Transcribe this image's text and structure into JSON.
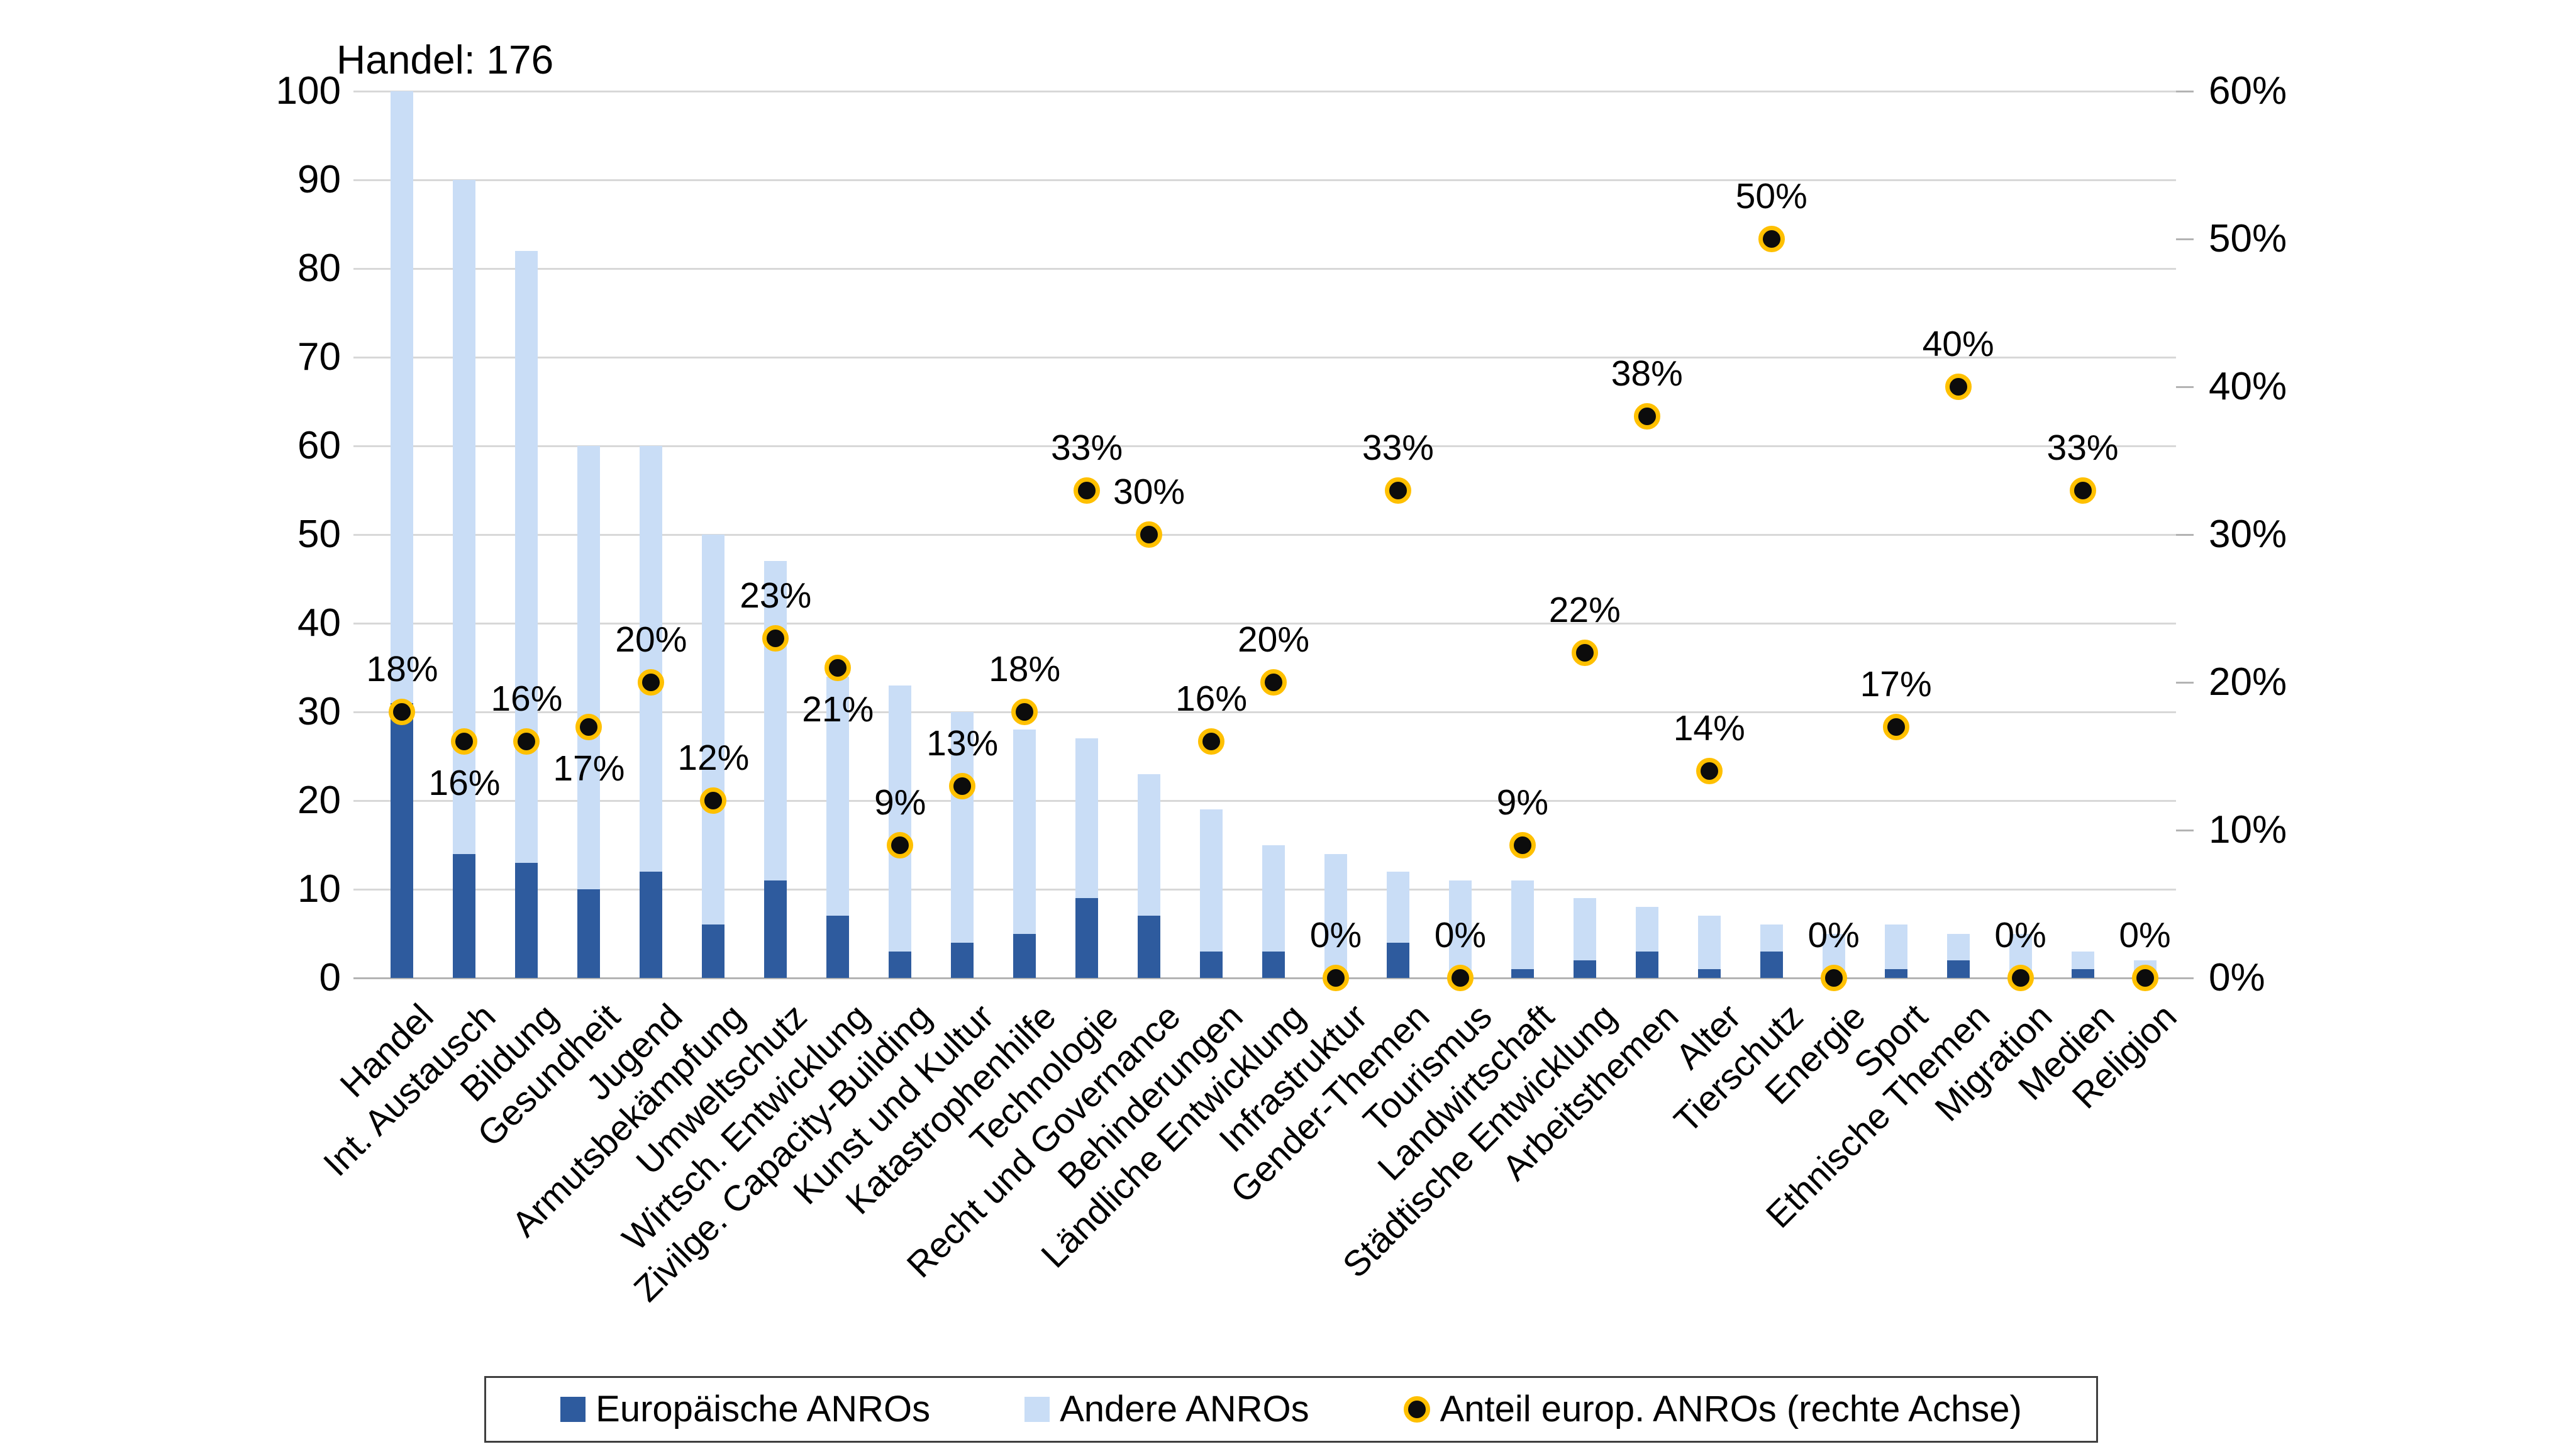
{
  "annotation": {
    "text": "Handel: 176"
  },
  "left_axis": {
    "min": 0,
    "max": 100,
    "step": 10,
    "labels": [
      "0",
      "10",
      "20",
      "30",
      "40",
      "50",
      "60",
      "70",
      "80",
      "90",
      "100"
    ]
  },
  "right_axis": {
    "min": 0,
    "max": 60,
    "step": 10,
    "labels": [
      "0%",
      "10%",
      "20%",
      "30%",
      "40%",
      "50%",
      "60%"
    ]
  },
  "legend": {
    "items": [
      {
        "label": "Europäische ANROs",
        "marker": "square",
        "color": "#2e5b9e"
      },
      {
        "label": "Andere ANROs",
        "marker": "square",
        "color": "#c9ddf6"
      },
      {
        "label": "Anteil europ. ANROs (rechte Achse)",
        "marker": "dot",
        "color": "#0c0c0c",
        "ring": "#ffc000"
      }
    ]
  },
  "colors": {
    "europaeische": "#2e5b9e",
    "andere": "#c9ddf6",
    "dot_fill": "#0c0c0c",
    "dot_ring": "#ffc000",
    "gridline": "#d8d8d8",
    "baseline": "#b3b3b3",
    "tick_stub": "#b3b3b3",
    "text": "#000000"
  },
  "chart_data": {
    "type": "bar",
    "stacked": true,
    "grid": "horizontal",
    "legend_position": "bottom",
    "ylim_left": [
      0,
      100
    ],
    "ylim_right_percent": [
      0,
      60
    ],
    "clip_note": "Handel total is 176 but bar is clipped at 100; annotated 'Handel: 176'",
    "categories": [
      "Handel",
      "Int. Austausch",
      "Bildung",
      "Gesundheit",
      "Jugend",
      "Armutsbekämpfung",
      "Umweltschutz",
      "Wirtsch. Entwicklung",
      "Zivilge. Capacity-Building",
      "Kunst und Kultur",
      "Katastrophenhilfe",
      "Technologie",
      "Recht und Governance",
      "Behinderungen",
      "Ländliche Entwicklung",
      "Infrastruktur",
      "Gender-Themen",
      "Tourismus",
      "Landwirtschaft",
      "Städtische Entwicklung",
      "Arbeitsthemen",
      "Alter",
      "Tierschutz",
      "Energie",
      "Sport",
      "Ethnische Themen",
      "Migration",
      "Medien",
      "Religion"
    ],
    "totals": [
      176,
      90,
      82,
      60,
      60,
      50,
      47,
      34,
      33,
      30,
      28,
      27,
      23,
      19,
      15,
      14,
      12,
      11,
      11,
      9,
      8,
      7,
      6,
      5,
      6,
      5,
      5,
      3,
      2
    ],
    "series": [
      {
        "name": "Europäische ANROs",
        "axis": "left",
        "values": [
          31,
          14,
          13,
          10,
          12,
          6,
          11,
          7,
          3,
          4,
          5,
          9,
          7,
          3,
          3,
          0,
          4,
          0,
          1,
          2,
          3,
          1,
          3,
          0,
          1,
          2,
          0,
          1,
          0
        ]
      },
      {
        "name": "Andere ANROs",
        "axis": "left",
        "values": [
          145,
          76,
          69,
          50,
          48,
          44,
          36,
          27,
          30,
          26,
          23,
          18,
          16,
          16,
          12,
          14,
          8,
          11,
          10,
          7,
          5,
          6,
          3,
          5,
          5,
          3,
          5,
          2,
          2
        ]
      },
      {
        "name": "Anteil europ. ANROs (rechte Achse)",
        "axis": "right",
        "unit": "percent",
        "values": [
          18,
          16,
          16,
          17,
          20,
          12,
          23,
          21,
          9,
          13,
          18,
          33,
          30,
          16,
          20,
          0,
          33,
          0,
          9,
          22,
          38,
          14,
          50,
          0,
          17,
          40,
          0,
          33,
          0
        ],
        "labels": [
          "18%",
          "16%",
          "16%",
          "17%",
          "20%",
          "12%",
          "23%",
          "21%",
          "9%",
          "13%",
          "18%",
          "33%",
          "30%",
          "16%",
          "20%",
          "0%",
          "33%",
          "0%",
          "9%",
          "22%",
          "38%",
          "14%",
          "50%",
          "0%",
          "17%",
          "40%",
          "0%",
          "33%",
          "0%"
        ],
        "label_positions": [
          "above",
          "below",
          "above",
          "below",
          "above",
          "above",
          "above",
          "below",
          "above",
          "above",
          "above",
          "above",
          "above",
          "above",
          "above",
          "above",
          "above",
          "above",
          "above",
          "above",
          "above",
          "above",
          "above",
          "above",
          "above",
          "above",
          "above",
          "above",
          "above"
        ]
      }
    ]
  }
}
